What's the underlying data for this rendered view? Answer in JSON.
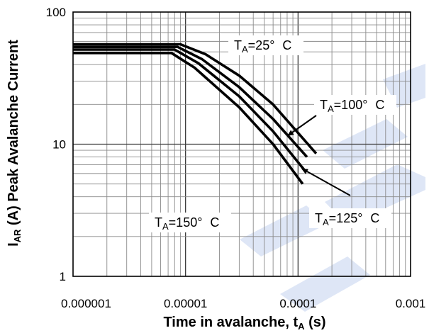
{
  "chart_data": {
    "type": "line",
    "x_scale": "log",
    "y_scale": "log",
    "xlim": [
      1e-06,
      0.001
    ],
    "ylim": [
      1,
      100
    ],
    "grid": true,
    "x_ticks": [
      {
        "value": 1e-06,
        "label": "0.000001"
      },
      {
        "value": 1e-05,
        "label": "0.00001"
      },
      {
        "value": 0.0001,
        "label": "0.0001"
      },
      {
        "value": 0.001,
        "label": "0.001"
      }
    ],
    "y_ticks": [
      {
        "value": 1,
        "label": "1"
      },
      {
        "value": 10,
        "label": "10"
      },
      {
        "value": 100,
        "label": "100"
      }
    ],
    "xlabel": {
      "text": "Time in avalanche, t",
      "sub": "A",
      "suffix": " (s)"
    },
    "ylabel": {
      "text": "I",
      "sub": "AR",
      "suffix": " (A) Peak Avalanche Current"
    },
    "series": [
      {
        "label": {
          "text": "T",
          "sub": "A",
          "suffix": "=25° C"
        },
        "points": [
          [
            1e-06,
            57
          ],
          [
            9e-06,
            57
          ],
          [
            1.5e-05,
            48
          ],
          [
            3e-05,
            33
          ],
          [
            6e-05,
            20
          ],
          [
            0.000145,
            8.5
          ]
        ]
      },
      {
        "label": {
          "text": "T",
          "sub": "A",
          "suffix": "=100° C"
        },
        "points": [
          [
            1e-06,
            54.5
          ],
          [
            8.5e-06,
            54.5
          ],
          [
            1.4e-05,
            44
          ],
          [
            3e-05,
            27
          ],
          [
            6e-05,
            15.5
          ],
          [
            0.00012,
            8
          ]
        ]
      },
      {
        "label": {
          "text": "T",
          "sub": "A",
          "suffix": "=125° C"
        },
        "points": [
          [
            1e-06,
            52
          ],
          [
            8e-06,
            52
          ],
          [
            1.3e-05,
            41
          ],
          [
            3e-05,
            23
          ],
          [
            6e-05,
            12.5
          ],
          [
            0.000115,
            6.3
          ]
        ]
      },
      {
        "label": {
          "text": "T",
          "sub": "A",
          "suffix": "=150° C"
        },
        "points": [
          [
            1e-06,
            49
          ],
          [
            7.5e-06,
            49
          ],
          [
            1.2e-05,
            38
          ],
          [
            3e-05,
            19
          ],
          [
            6e-05,
            10
          ],
          [
            0.00011,
            5
          ]
        ]
      }
    ]
  },
  "colors": {
    "curve": "#000000",
    "grid_minor": "#8a8a8a",
    "grid_major": "#3c3c3c",
    "watermark": "#d3def3"
  }
}
